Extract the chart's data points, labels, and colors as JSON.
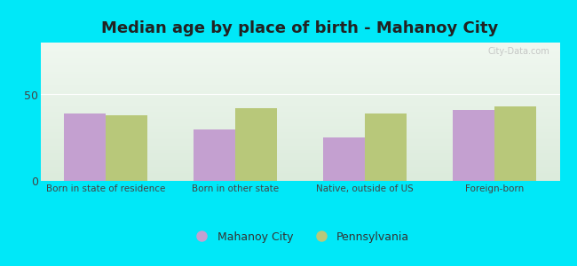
{
  "title": "Median age by place of birth - Mahanoy City",
  "categories": [
    "Born in state of residence",
    "Born in other state",
    "Native, outside of US",
    "Foreign-born"
  ],
  "mahanoy_values": [
    39,
    30,
    25,
    41
  ],
  "pennsylvania_values": [
    38,
    42,
    39,
    43
  ],
  "mahanoy_color": "#c4a0d0",
  "pennsylvania_color": "#b8c87a",
  "ylim": [
    0,
    80
  ],
  "yticks": [
    0,
    50
  ],
  "background_outer": "#00e8f8",
  "legend_mahanoy": "Mahanoy City",
  "legend_pennsylvania": "Pennsylvania",
  "title_fontsize": 13,
  "bar_width": 0.32,
  "watermark": "City-Data.com"
}
